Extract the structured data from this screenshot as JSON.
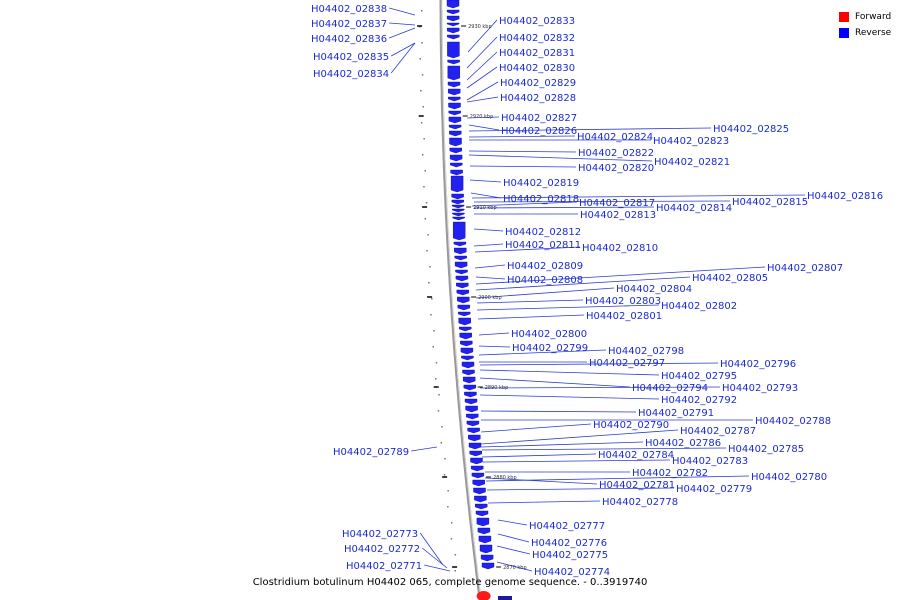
{
  "caption": "Clostridium botulinum H04402 065, complete genome sequence. - 0..3919740",
  "legend": {
    "forward": {
      "label": "Forward",
      "color": "#ff0000"
    },
    "reverse": {
      "label": "Reverse",
      "color": "#0000ff"
    }
  },
  "strand_colors": {
    "forward": "#ff1a1a",
    "reverse": "#2222ee",
    "axis": "#777777",
    "leader": "#2b3bd6"
  },
  "position_marks": [
    "2930 kbp",
    "2920 kbp",
    "2910 kbp",
    "2900 kbp",
    "2890 kbp",
    "2880 kbp",
    "2870 kbp"
  ],
  "gene_labels": {
    "left": [
      "H04402_02838",
      "H04402_02837",
      "H04402_02836",
      "H04402_02835",
      "H04402_02834",
      "H04402_02789",
      "H04402_02773",
      "H04402_02772",
      "H04402_02771"
    ],
    "right": [
      "H04402_02833",
      "H04402_02832",
      "H04402_02831",
      "H04402_02830",
      "H04402_02829",
      "H04402_02828",
      "H04402_02827",
      "H04402_02826",
      "H04402_02825",
      "H04402_02824",
      "H04402_02823",
      "H04402_02822",
      "H04402_02821",
      "H04402_02820",
      "H04402_02819",
      "H04402_02818",
      "H04402_02817",
      "H04402_02816",
      "H04402_02815",
      "H04402_02814",
      "H04402_02813",
      "H04402_02812",
      "H04402_02811",
      "H04402_02810",
      "H04402_02809",
      "H04402_02808",
      "H04402_02807",
      "H04402_02805",
      "H04402_02804",
      "H04402_02803",
      "H04402_02802",
      "H04402_02801",
      "H04402_02800",
      "H04402_02799",
      "H04402_02798",
      "H04402_02797",
      "H04402_02796",
      "H04402_02795",
      "H04402_02794",
      "H04402_02793",
      "H04402_02792",
      "H04402_02791",
      "H04402_02790",
      "H04402_02788",
      "H04402_02787",
      "H04402_02786",
      "H04402_02785",
      "H04402_02784",
      "H04402_02783",
      "H04402_02782",
      "H04402_02781",
      "H04402_02780",
      "H04402_02779",
      "H04402_02778",
      "H04402_02777",
      "H04402_02776",
      "H04402_02775",
      "H04402_02774"
    ]
  }
}
